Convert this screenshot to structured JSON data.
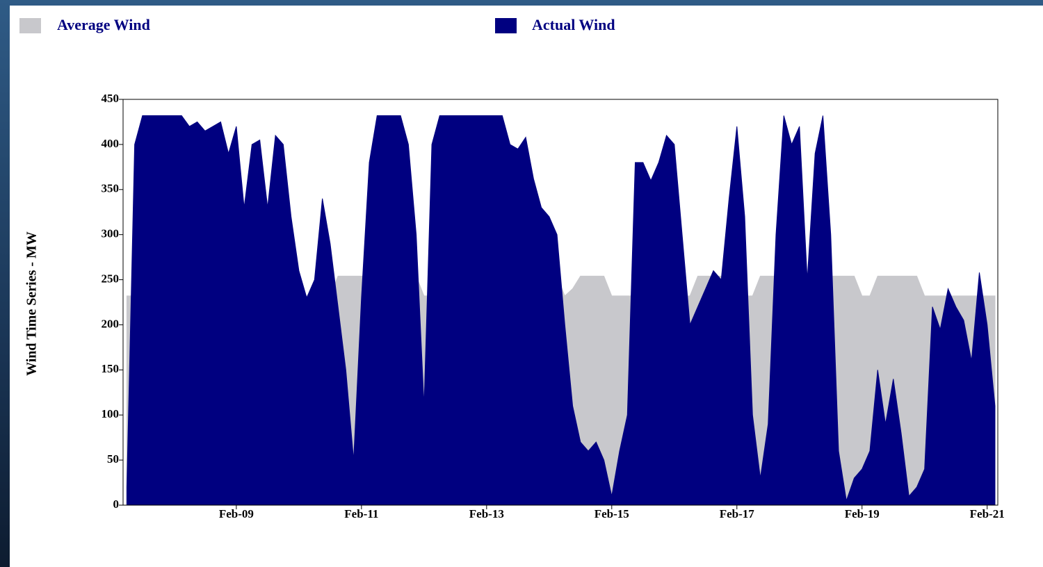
{
  "chart_data": {
    "type": "area",
    "ylabel": "Wind Time Series - MW",
    "legend": "top",
    "x": [
      7.25,
      7.375,
      7.5,
      7.625,
      7.75,
      7.875,
      8.0,
      8.125,
      8.25,
      8.375,
      8.5,
      8.625,
      8.75,
      8.875,
      9.0,
      9.125,
      9.25,
      9.375,
      9.5,
      9.625,
      9.75,
      9.875,
      10.0,
      10.125,
      10.25,
      10.375,
      10.5,
      10.625,
      10.75,
      10.875,
      11.0,
      11.125,
      11.25,
      11.375,
      11.5,
      11.625,
      11.75,
      11.875,
      12.0,
      12.125,
      12.25,
      12.375,
      12.5,
      12.625,
      12.75,
      12.875,
      13.0,
      13.125,
      13.25,
      13.375,
      13.5,
      13.625,
      13.75,
      13.875,
      14.0,
      14.125,
      14.25,
      14.375,
      14.5,
      14.625,
      14.75,
      14.875,
      15.0,
      15.125,
      15.25,
      15.375,
      15.5,
      15.625,
      15.75,
      15.875,
      16.0,
      16.125,
      16.25,
      16.375,
      16.5,
      16.625,
      16.75,
      16.875,
      17.0,
      17.125,
      17.25,
      17.375,
      17.5,
      17.625,
      17.75,
      17.875,
      18.0,
      18.125,
      18.25,
      18.375,
      18.5,
      18.625,
      18.75,
      18.875,
      19.0,
      19.125,
      19.25,
      19.375,
      19.5,
      19.625,
      19.75,
      19.875,
      20.0,
      20.125,
      20.25,
      20.375,
      20.5,
      20.625,
      20.75,
      20.875,
      21.0,
      21.125
    ],
    "series": [
      {
        "name": "Average Wind",
        "color": "#c8c8cc",
        "values": [
          232,
          232,
          232,
          232,
          232,
          232,
          232,
          232,
          232,
          232,
          232,
          232,
          232,
          232,
          232,
          232,
          232,
          232,
          232,
          232,
          232,
          232,
          232,
          232,
          232,
          232,
          232,
          254,
          254,
          254,
          254,
          254,
          254,
          254,
          254,
          254,
          254,
          254,
          232,
          232,
          232,
          232,
          232,
          232,
          254,
          254,
          254,
          254,
          254,
          254,
          254,
          254,
          254,
          254,
          254,
          254,
          232,
          240,
          254,
          254,
          254,
          254,
          232,
          232,
          232,
          232,
          232,
          232,
          232,
          232,
          232,
          232,
          232,
          254,
          254,
          254,
          254,
          254,
          254,
          232,
          232,
          254,
          254,
          254,
          254,
          254,
          254,
          254,
          254,
          254,
          254,
          254,
          254,
          254,
          232,
          232,
          254,
          254,
          254,
          254,
          254,
          254,
          232,
          232,
          232,
          232,
          232,
          232,
          232,
          232,
          232,
          232
        ]
      },
      {
        "name": "Actual Wind",
        "color": "#000080",
        "values": [
          20,
          400,
          432,
          432,
          432,
          432,
          432,
          432,
          420,
          425,
          415,
          420,
          425,
          390,
          420,
          330,
          400,
          405,
          330,
          410,
          400,
          320,
          260,
          230,
          250,
          340,
          290,
          220,
          150,
          50,
          230,
          380,
          432,
          432,
          432,
          432,
          400,
          300,
          110,
          400,
          432,
          432,
          432,
          432,
          432,
          432,
          432,
          432,
          432,
          400,
          395,
          408,
          362,
          330,
          320,
          300,
          200,
          110,
          70,
          60,
          70,
          50,
          10,
          60,
          100,
          380,
          380,
          360,
          380,
          410,
          400,
          300,
          200,
          220,
          240,
          260,
          250,
          340,
          420,
          320,
          100,
          30,
          90,
          300,
          432,
          400,
          420,
          250,
          390,
          432,
          300,
          60,
          5,
          30,
          40,
          60,
          150,
          90,
          140,
          80,
          10,
          20,
          40,
          220,
          195,
          240,
          220,
          205,
          160,
          258,
          200,
          110
        ]
      }
    ],
    "xlim": [
      7.19,
      21.17
    ],
    "xticks": [
      {
        "value": 9,
        "label": "Feb-09"
      },
      {
        "value": 11,
        "label": "Feb-11"
      },
      {
        "value": 13,
        "label": "Feb-13"
      },
      {
        "value": 15,
        "label": "Feb-15"
      },
      {
        "value": 17,
        "label": "Feb-17"
      },
      {
        "value": 19,
        "label": "Feb-19"
      },
      {
        "value": 21,
        "label": "Feb-21"
      }
    ],
    "ylim": [
      0,
      450
    ],
    "yticks": [
      0,
      50,
      100,
      150,
      200,
      250,
      300,
      350,
      400,
      450
    ]
  }
}
